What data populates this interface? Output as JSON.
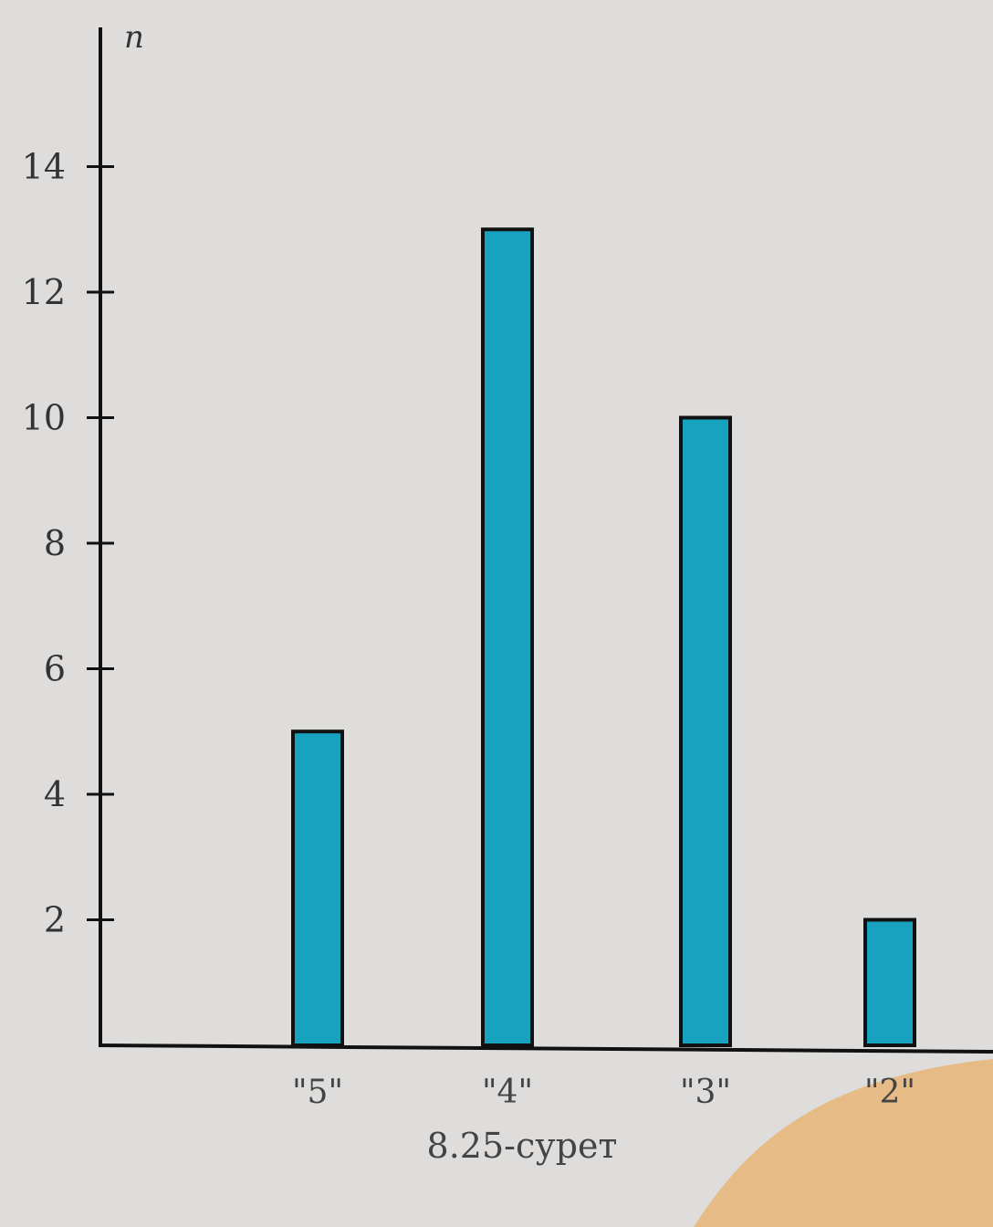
{
  "chart_data": {
    "type": "bar",
    "categories": [
      "\"5\"",
      "\"4\"",
      "\"3\"",
      "\"2\""
    ],
    "values": [
      5,
      13,
      10,
      2
    ],
    "title": "",
    "caption": "8.25-сурет",
    "xlabel": "",
    "ylabel": "n",
    "ylim": [
      0,
      16
    ],
    "yticks": [
      2,
      4,
      6,
      8,
      10,
      12,
      14
    ],
    "grid": false,
    "bar_color": "#17a3bf",
    "bar_edge_color": "#111111",
    "background_color": "#dedddb"
  }
}
